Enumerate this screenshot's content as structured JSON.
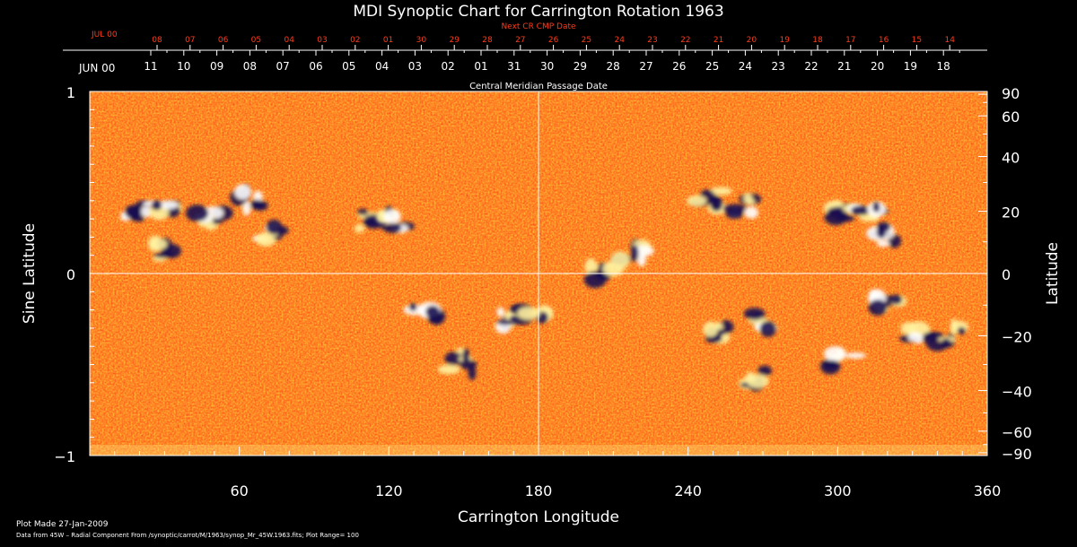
{
  "chart_data": {
    "type": "heatmap",
    "title": "MDI Synoptic Chart for Carrington Rotation 1963",
    "xlabel": "Carrington Longitude",
    "ylabel_left": "Sine Latitude",
    "ylabel_right": "Latitude",
    "xlim": [
      0,
      360
    ],
    "ylim": [
      -1,
      1
    ],
    "x_ticks": [
      "60",
      "120",
      "180",
      "240",
      "300",
      "360"
    ],
    "y_ticks_left": [
      "1",
      "0",
      "−1"
    ],
    "y_ticks_right": [
      "90",
      "60",
      "40",
      "20",
      "0",
      "−20",
      "−40",
      "−60",
      "−90"
    ],
    "top_axis_label": "Central Meridian Passage Date",
    "top_axis_month_label": "JUN 00",
    "top_axis_dates": [
      "11",
      "10",
      "09",
      "08",
      "07",
      "06",
      "05",
      "04",
      "03",
      "02",
      "01",
      "31",
      "30",
      "29",
      "28",
      "27",
      "26",
      "25",
      "24",
      "23",
      "22",
      "21",
      "20",
      "19",
      "18"
    ],
    "next_cr_label": "Next CR CMP Date",
    "next_cr_month_label": "JUL 00",
    "next_cr_dates": [
      "08",
      "07",
      "06",
      "05",
      "04",
      "03",
      "02",
      "01",
      "30",
      "29",
      "28",
      "27",
      "26",
      "25",
      "24",
      "23",
      "22",
      "21",
      "20",
      "19",
      "18",
      "17",
      "16",
      "15",
      "14"
    ],
    "colors": {
      "background": "#000000",
      "field": "#ff5a1a",
      "positive": "#ffffff",
      "negative": "#1a1050",
      "next_cr_text": "#ff3b1a"
    },
    "regions": [
      {
        "lon": 18,
        "lat": 20,
        "polarity": "mixed"
      },
      {
        "lon": 30,
        "lat": 22,
        "polarity": "positive"
      },
      {
        "lon": 28,
        "lat": 7,
        "polarity": "negative"
      },
      {
        "lon": 48,
        "lat": 17,
        "polarity": "positive"
      },
      {
        "lon": 65,
        "lat": 24,
        "polarity": "mixed"
      },
      {
        "lon": 72,
        "lat": 13,
        "polarity": "positive"
      },
      {
        "lon": 113,
        "lat": 17,
        "polarity": "negative"
      },
      {
        "lon": 122,
        "lat": 17,
        "polarity": "positive"
      },
      {
        "lon": 135,
        "lat": -13,
        "polarity": "mixed"
      },
      {
        "lon": 148,
        "lat": -30,
        "polarity": "negative"
      },
      {
        "lon": 170,
        "lat": -15,
        "polarity": "positive"
      },
      {
        "lon": 178,
        "lat": -14,
        "polarity": "negative"
      },
      {
        "lon": 205,
        "lat": 0,
        "polarity": "negative"
      },
      {
        "lon": 218,
        "lat": 6,
        "polarity": "positive"
      },
      {
        "lon": 248,
        "lat": 24,
        "polarity": "negative"
      },
      {
        "lon": 262,
        "lat": 22,
        "polarity": "positive"
      },
      {
        "lon": 252,
        "lat": -20,
        "polarity": "negative"
      },
      {
        "lon": 270,
        "lat": -15,
        "polarity": "positive"
      },
      {
        "lon": 268,
        "lat": -35,
        "polarity": "negative"
      },
      {
        "lon": 302,
        "lat": 20,
        "polarity": "negative"
      },
      {
        "lon": 312,
        "lat": 19,
        "polarity": "positive"
      },
      {
        "lon": 318,
        "lat": 12,
        "polarity": "mixed"
      },
      {
        "lon": 302,
        "lat": -28,
        "polarity": "positive"
      },
      {
        "lon": 320,
        "lat": -10,
        "polarity": "positive"
      },
      {
        "lon": 333,
        "lat": -19,
        "polarity": "positive"
      },
      {
        "lon": 345,
        "lat": -20,
        "polarity": "negative"
      }
    ]
  },
  "footer": {
    "plot_made": "Plot Made 27-Jan-2009",
    "data_from": "Data from 45W – Radial Component From /synoptic/carrot/M/1963/synop_Mr_45W.1963.fits; Plot Range=  100"
  }
}
